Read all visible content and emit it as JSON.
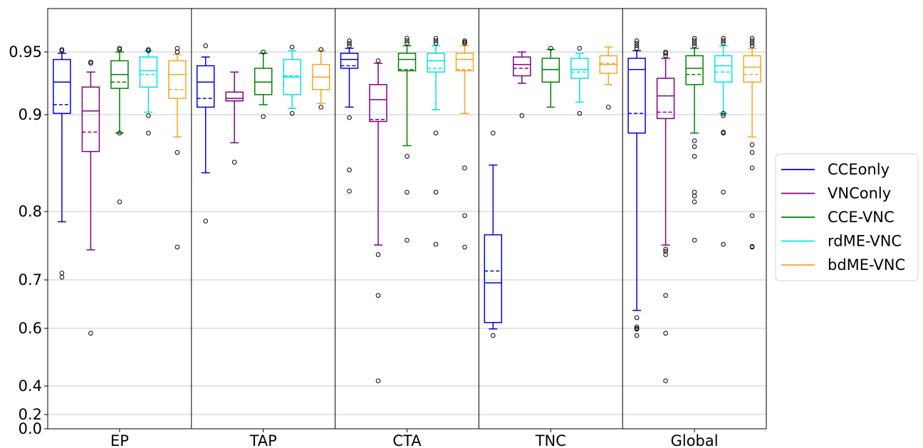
{
  "chart_data": {
    "type": "box",
    "title": "",
    "xlabel": "",
    "ylabel": "",
    "y_scale": "nonlinear",
    "y_ticks": [
      0.0,
      0.2,
      0.4,
      0.6,
      0.7,
      0.8,
      0.9,
      0.95
    ],
    "y_tick_labels": [
      "0.0",
      "0.2",
      "0.4",
      "0.6",
      "0.7",
      "0.8",
      "0.9",
      "0.95"
    ],
    "grid": "horizontal",
    "legend_position": "right",
    "categories": [
      "EP",
      "TAP",
      "CTA",
      "TNC",
      "Global"
    ],
    "series": [
      {
        "name": "CCEonly",
        "color": "#0000dd",
        "boxes": [
          {
            "whislo": 0.785,
            "q1": 0.901,
            "med": 0.926,
            "q3": 0.944,
            "whishi": 0.949,
            "mean": 0.908,
            "fliers": [
              0.704,
              0.71,
              0.951,
              0.952
            ]
          },
          {
            "whislo": 0.84,
            "q1": 0.906,
            "med": 0.926,
            "q3": 0.939,
            "whishi": 0.946,
            "mean": 0.913,
            "fliers": [
              0.786,
              0.955
            ]
          },
          {
            "whislo": 0.906,
            "q1": 0.937,
            "med": 0.944,
            "q3": 0.949,
            "whishi": 0.953,
            "mean": 0.939,
            "fliers": [
              0.821,
              0.843,
              0.897,
              0.955,
              0.957,
              0.959
            ]
          },
          {
            "whislo": 0.598,
            "q1": 0.612,
            "med": 0.694,
            "q3": 0.766,
            "whishi": 0.848,
            "mean": 0.713,
            "fliers": [
              0.575,
              0.881
            ]
          },
          {
            "whislo": 0.637,
            "q1": 0.881,
            "med": 0.936,
            "q3": 0.945,
            "whishi": 0.951,
            "mean": 0.901,
            "fliers": [
              0.575,
              0.597,
              0.6,
              0.603,
              0.622,
              0.953,
              0.955,
              0.957,
              0.959
            ]
          }
        ]
      },
      {
        "name": "VNConly",
        "color": "#800080",
        "boxes": [
          {
            "whislo": 0.744,
            "q1": 0.862,
            "med": 0.903,
            "q3": 0.922,
            "whishi": 0.934,
            "mean": 0.882,
            "fliers": [
              0.583,
              0.941,
              0.942
            ]
          },
          {
            "whislo": 0.871,
            "q1": 0.911,
            "med": 0.913,
            "q3": 0.918,
            "whishi": 0.934,
            "mean": 0.911,
            "fliers": [
              0.851
            ]
          },
          {
            "whislo": 0.751,
            "q1": 0.893,
            "med": 0.912,
            "q3": 0.924,
            "whishi": 0.941,
            "mean": 0.895,
            "fliers": [
              0.418,
              0.668,
              0.737,
              0.943
            ]
          },
          {
            "whislo": 0.925,
            "q1": 0.931,
            "med": 0.94,
            "q3": 0.946,
            "whishi": 0.95,
            "mean": 0.937,
            "fliers": [
              0.899
            ]
          },
          {
            "whislo": 0.751,
            "q1": 0.896,
            "med": 0.915,
            "q3": 0.929,
            "whishi": 0.945,
            "mean": 0.902,
            "fliers": [
              0.418,
              0.583,
              0.668,
              0.737,
              0.742,
              0.745,
              0.947,
              0.949,
              0.95
            ]
          }
        ]
      },
      {
        "name": "CCE-VNC",
        "color": "#008000",
        "boxes": [
          {
            "whislo": 0.881,
            "q1": 0.921,
            "med": 0.932,
            "q3": 0.943,
            "whishi": 0.95,
            "mean": 0.926,
            "fliers": [
              0.81,
              0.881,
              0.952,
              0.953
            ]
          },
          {
            "whislo": 0.908,
            "q1": 0.916,
            "med": 0.926,
            "q3": 0.937,
            "whishi": 0.949,
            "mean": 0.926,
            "fliers": [
              0.898,
              0.95
            ]
          },
          {
            "whislo": 0.868,
            "q1": 0.935,
            "med": 0.944,
            "q3": 0.949,
            "whishi": 0.955,
            "mean": 0.936,
            "fliers": [
              0.758,
              0.82,
              0.857,
              0.957,
              0.959,
              0.961
            ]
          },
          {
            "whislo": 0.906,
            "q1": 0.926,
            "med": 0.936,
            "q3": 0.945,
            "whishi": 0.952,
            "mean": 0.936,
            "fliers": [
              0.953
            ]
          },
          {
            "whislo": 0.881,
            "q1": 0.924,
            "med": 0.937,
            "q3": 0.947,
            "whishi": 0.953,
            "mean": 0.932,
            "fliers": [
              0.758,
              0.81,
              0.816,
              0.82,
              0.857,
              0.867,
              0.873,
              0.955,
              0.957,
              0.959,
              0.961
            ]
          }
        ]
      },
      {
        "name": "rdME-VNC",
        "color": "#00e5e5",
        "boxes": [
          {
            "whislo": 0.902,
            "q1": 0.922,
            "med": 0.935,
            "q3": 0.946,
            "whishi": 0.951,
            "mean": 0.932,
            "fliers": [
              0.881,
              0.899,
              0.951,
              0.952
            ]
          },
          {
            "whislo": 0.905,
            "q1": 0.916,
            "med": 0.93,
            "q3": 0.944,
            "whishi": 0.951,
            "mean": 0.931,
            "fliers": [
              0.901,
              0.954
            ]
          },
          {
            "whislo": 0.904,
            "q1": 0.934,
            "med": 0.943,
            "q3": 0.949,
            "whishi": 0.955,
            "mean": 0.937,
            "fliers": [
              0.881,
              0.82,
              0.752,
              0.957,
              0.959,
              0.961
            ]
          },
          {
            "whislo": 0.91,
            "q1": 0.929,
            "med": 0.936,
            "q3": 0.945,
            "whishi": 0.949,
            "mean": 0.934,
            "fliers": [
              0.901,
              0.953
            ]
          },
          {
            "whislo": 0.901,
            "q1": 0.926,
            "med": 0.939,
            "q3": 0.947,
            "whishi": 0.955,
            "mean": 0.934,
            "fliers": [
              0.752,
              0.82,
              0.881,
              0.882,
              0.899,
              0.901,
              0.957,
              0.959,
              0.961
            ]
          }
        ]
      },
      {
        "name": "bdME-VNC",
        "color": "#f5a623",
        "boxes": [
          {
            "whislo": 0.877,
            "q1": 0.913,
            "med": 0.932,
            "q3": 0.943,
            "whishi": 0.948,
            "mean": 0.92,
            "fliers": [
              0.748,
              0.861,
              0.95,
              0.953
            ]
          },
          {
            "whislo": 0.909,
            "q1": 0.92,
            "med": 0.93,
            "q3": 0.94,
            "whishi": 0.951,
            "mean": 0.93,
            "fliers": [
              0.906,
              0.952
            ]
          },
          {
            "whislo": 0.901,
            "q1": 0.935,
            "med": 0.944,
            "q3": 0.949,
            "whishi": 0.955,
            "mean": 0.936,
            "fliers": [
              0.748,
              0.794,
              0.845,
              0.957,
              0.958,
              0.959
            ]
          },
          {
            "whislo": 0.924,
            "q1": 0.933,
            "med": 0.94,
            "q3": 0.947,
            "whishi": 0.954,
            "mean": 0.941,
            "fliers": [
              0.906
            ]
          },
          {
            "whislo": 0.877,
            "q1": 0.926,
            "med": 0.938,
            "q3": 0.947,
            "whishi": 0.953,
            "mean": 0.932,
            "fliers": [
              0.748,
              0.749,
              0.794,
              0.845,
              0.861,
              0.869,
              0.955,
              0.957,
              0.959,
              0.961
            ]
          }
        ]
      }
    ]
  }
}
